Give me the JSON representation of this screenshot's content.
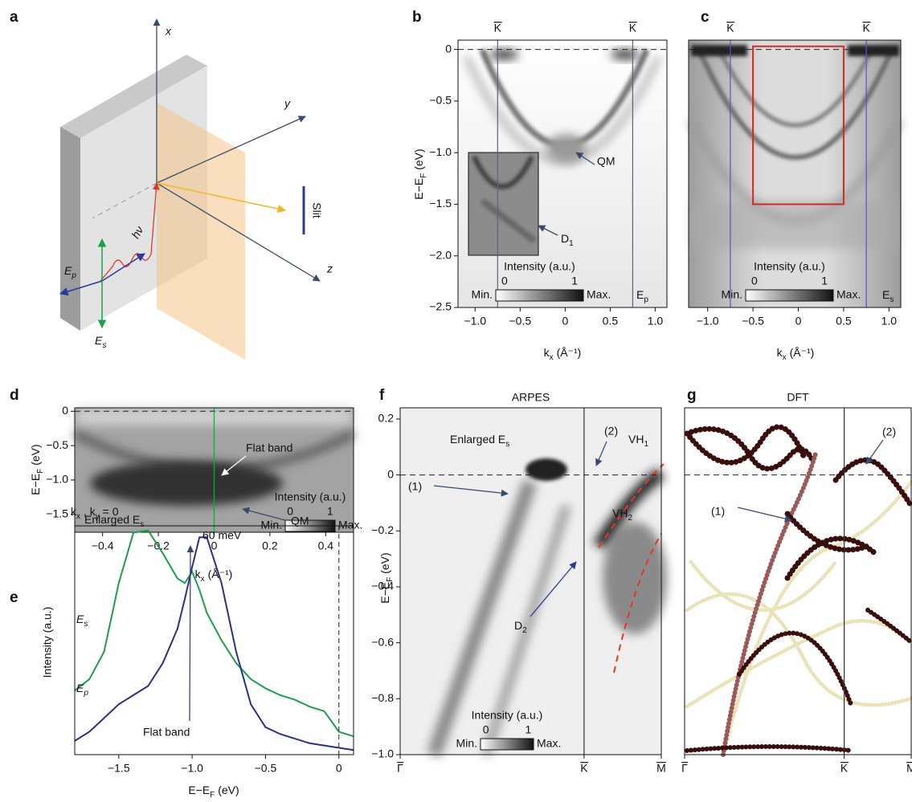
{
  "diagram": {
    "panel": "a",
    "axes": [
      "x",
      "y",
      "z"
    ],
    "slit": "Slit",
    "photon": "hν",
    "fields": [
      [
        "E",
        "p"
      ],
      [
        "E",
        "s"
      ]
    ]
  },
  "chart_data": [
    {
      "type": "heatmap",
      "panel": "b",
      "ylabel": [
        "E−E",
        "F",
        " (eV)"
      ],
      "xlabel": [
        "k",
        "x",
        " (Å⁻¹)"
      ],
      "xlim": [
        -1.19,
        1.13
      ],
      "xticks": [
        {
          "value": -1.0,
          "label": "−1.0"
        },
        {
          "value": -0.5,
          "label": "−0.5"
        },
        0,
        0.5,
        {
          "value": 1.0,
          "label": "1.0"
        }
      ],
      "ylim": [
        -2.5,
        0.09
      ],
      "yticks": [
        0,
        {
          "value": -0.5,
          "label": "−0.5"
        },
        {
          "value": -1.0,
          "label": "−1.0"
        },
        {
          "value": -1.5,
          "label": "−1.5"
        },
        {
          "value": -2.0,
          "label": "−2.0"
        },
        {
          "value": -2.5,
          "label": "−2.5"
        }
      ],
      "hline": 0,
      "markers": [
        {
          "label": "K",
          "x": -0.75
        },
        {
          "label": "K",
          "x": 0.75
        }
      ],
      "marker_color": "#6a4fb3",
      "colorbar": {
        "label": "Intensity (a.u.)",
        "ticks": [
          0,
          1
        ],
        "min": "Min.",
        "max": "Max."
      },
      "annotations": [
        {
          "text": "QM"
        },
        {
          "text": [
            "D",
            "1"
          ]
        },
        {
          "text": [
            "E",
            "p"
          ],
          "color": "#2b3a9a"
        }
      ]
    },
    {
      "type": "heatmap",
      "panel": "c",
      "xlabel": [
        "k",
        "x",
        " (Å⁻¹)"
      ],
      "xlim": [
        -1.21,
        1.13
      ],
      "xticks": [
        {
          "value": -1.0,
          "label": "−1.0"
        },
        {
          "value": -0.5,
          "label": "−0.5"
        },
        0,
        0.5,
        {
          "value": 1.0,
          "label": "1.0"
        }
      ],
      "ylim": [
        -2.5,
        0.09
      ],
      "hline": 0,
      "markers": [
        {
          "label": "K",
          "x": -0.75
        },
        {
          "label": "K",
          "x": 0.75
        }
      ],
      "marker_color": "#6a4fb3",
      "box": {
        "x": [
          -0.5,
          0.5
        ],
        "y": [
          -1.5,
          0.03
        ],
        "color": "#d62728"
      },
      "colorbar": {
        "label": "Intensity (a.u.)",
        "ticks": [
          0,
          1
        ],
        "min": "Min.",
        "max": "Max."
      },
      "annotations": [
        {
          "text": [
            "E",
            "s"
          ],
          "color": "#1f9e4a"
        }
      ]
    },
    {
      "type": "heatmap",
      "panel": "d",
      "ylabel": [
        "E−E",
        "F",
        " (eV)"
      ],
      "xlabel": [
        "k",
        "x",
        " (Å⁻¹)"
      ],
      "xlim": [
        -0.5,
        0.5
      ],
      "xticks": [
        {
          "value": -0.4,
          "label": "−0.4"
        },
        {
          "value": -0.2,
          "label": "−0.2"
        },
        0,
        0.2,
        0.4
      ],
      "ylim": [
        -1.76,
        0.05
      ],
      "yticks": [
        0,
        {
          "value": -0.5,
          "label": "−0.5"
        },
        {
          "value": -1.0,
          "label": "−1.0"
        },
        {
          "value": -1.5,
          "label": "−1.5"
        }
      ],
      "hline": 0,
      "vlines": [
        0
      ],
      "vline_color": "#1f9e4a",
      "colorbar": {
        "label": "Intensity (a.u.)",
        "ticks": [
          0,
          1
        ],
        "min": "Min.",
        "max": "Max."
      },
      "annotations": [
        {
          "text": "Flat band",
          "color": "#ffffff"
        },
        {
          "text": [
            "Enlarged E",
            "s"
          ],
          "color": "#ffffff"
        }
      ]
    },
    {
      "type": "line",
      "panel": "e",
      "ylabel": "Intensity (a.u.)",
      "xlabel": [
        "E−E",
        "F",
        " (eV)"
      ],
      "xlim": [
        -1.8,
        0.1
      ],
      "xticks": [
        {
          "value": -1.5,
          "label": "−1.5"
        },
        {
          "value": -1.0,
          "label": "−1.0"
        },
        {
          "value": -0.5,
          "label": "−0.5"
        },
        0
      ],
      "ylim": [
        0,
        1
      ],
      "vlines": [
        0
      ],
      "x": [
        -1.8,
        -1.7,
        -1.6,
        -1.5,
        -1.4,
        -1.3,
        -1.2,
        -1.1,
        -1.05,
        -1.0,
        -0.95,
        -0.9,
        -0.8,
        -0.7,
        -0.6,
        -0.5,
        -0.4,
        -0.3,
        -0.2,
        -0.1,
        0,
        0.1
      ],
      "series": [
        {
          "name": [
            "E",
            "s"
          ],
          "color": "#1f9e4a",
          "values": [
            0.28,
            0.33,
            0.45,
            0.75,
            0.97,
            0.98,
            0.88,
            0.77,
            0.75,
            0.8,
            0.72,
            0.62,
            0.5,
            0.4,
            0.33,
            0.29,
            0.26,
            0.24,
            0.21,
            0.19,
            0.1,
            0.08
          ]
        },
        {
          "name": [
            "E",
            "p"
          ],
          "color": "#2b2f8f",
          "values": [
            0.06,
            0.1,
            0.16,
            0.22,
            0.26,
            0.3,
            0.4,
            0.55,
            0.68,
            0.82,
            0.95,
            0.95,
            0.75,
            0.45,
            0.22,
            0.12,
            0.09,
            0.07,
            0.05,
            0.04,
            0.03,
            0.02
          ]
        }
      ],
      "annotations": [
        {
          "text": [
            "k",
            "x",
            " , k",
            "y",
            " = 0"
          ]
        },
        {
          "text": "QM"
        },
        {
          "text": "60 meV",
          "color": "#999999"
        },
        {
          "text": "Flat band"
        }
      ]
    },
    {
      "type": "heatmap",
      "panel": "f",
      "title": "ARPES",
      "ylabel": [
        "E−E",
        "F",
        " (eV)"
      ],
      "xlim": [
        0,
        1.42
      ],
      "xticks": [
        {
          "value": 0,
          "label": "Γ"
        },
        {
          "value": 1,
          "label": "K"
        },
        {
          "value": 1.42,
          "label": "M"
        }
      ],
      "x_tick_overline": true,
      "ylim": [
        -1.0,
        0.24
      ],
      "yticks": [
        0.2,
        0,
        {
          "value": -0.2,
          "label": "−0.2"
        },
        {
          "value": -0.4,
          "label": "−0.4"
        },
        {
          "value": -0.6,
          "label": "−0.6"
        },
        {
          "value": -0.8,
          "label": "−0.8"
        },
        {
          "value": -1.0,
          "label": "−1.0"
        }
      ],
      "hline": 0,
      "vlines": [
        1
      ],
      "vline_color": "#333333",
      "colorbar": {
        "label": "Intensity (a.u.)",
        "ticks": [
          0,
          1
        ],
        "min": "Min.",
        "max": "Max."
      },
      "annotations": [
        {
          "text": [
            "Enlarged E",
            "s"
          ],
          "color": "#1f9e4a"
        },
        {
          "text": "(1)"
        },
        {
          "text": "(2)"
        },
        {
          "text": [
            "VH",
            "1"
          ],
          "color": "#e8352a"
        },
        {
          "text": [
            "VH",
            "2"
          ],
          "color": "#e8352a"
        },
        {
          "text": [
            "D",
            "2"
          ],
          "color": "#2b3a9a"
        }
      ]
    },
    {
      "type": "bands",
      "panel": "g",
      "title": "DFT",
      "xlim": [
        0,
        1.42
      ],
      "xticks": [
        {
          "value": 0,
          "label": "Γ"
        },
        {
          "value": 1,
          "label": "K"
        },
        {
          "value": 1.42,
          "label": "M"
        }
      ],
      "x_tick_overline": true,
      "ylim": [
        -1.0,
        0.24
      ],
      "hline": 0,
      "vlines": [
        1
      ],
      "vline_color": "#333333",
      "annotations": [
        {
          "text": "(1)"
        },
        {
          "text": "(2)"
        }
      ]
    }
  ]
}
